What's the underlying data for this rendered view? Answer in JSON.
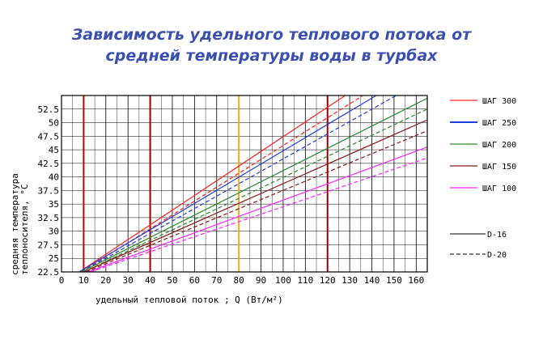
{
  "title_line1": "Зависимость удельного теплового потока от",
  "title_line2": "средней температуры воды в турбах",
  "chart_data": {
    "type": "line",
    "title": "Зависимость удельного теплового потока от средней температуры воды в турбах",
    "xlabel": "удельный тепловой поток ; Q (Вт/м²)",
    "ylabel_line1": "средняя температура",
    "ylabel_line2": "теплоносителя, °C",
    "xlim": [
      0,
      165
    ],
    "ylim": [
      22.5,
      55
    ],
    "x_ticks": [
      "0",
      "10",
      "20",
      "30",
      "40",
      "50",
      "60",
      "70",
      "80",
      "90",
      "100",
      "110",
      "120",
      "130",
      "140",
      "150",
      "160"
    ],
    "y_ticks": [
      "22.5",
      "25",
      "27.5",
      "30",
      "32.5",
      "35",
      "37.5",
      "40",
      "42.5",
      "45",
      "47.5",
      "50",
      "52.5"
    ],
    "highlight_vlines": [
      {
        "x": 10,
        "color": "#cc0000"
      },
      {
        "x": 40,
        "color": "#990000"
      },
      {
        "x": 80,
        "color": "#ffaa00"
      },
      {
        "x": 120,
        "color": "#990000"
      }
    ],
    "series": [
      {
        "name": "ШАГ 300",
        "color": "#ff2020",
        "style": "solid",
        "x": [
          8,
          128
        ],
        "y": [
          22.5,
          55
        ]
      },
      {
        "name": "ШАГ 300",
        "color": "#ff2020",
        "style": "dashed",
        "x": [
          9,
          136
        ],
        "y": [
          22.5,
          55
        ]
      },
      {
        "name": "ШАГ 250",
        "color": "#1f3fe0",
        "style": "solid",
        "x": [
          8,
          142
        ],
        "y": [
          22.5,
          55
        ]
      },
      {
        "name": "ШАГ 250",
        "color": "#1f3fe0",
        "style": "dashed",
        "x": [
          9,
          151
        ],
        "y": [
          22.5,
          55
        ]
      },
      {
        "name": "ШАГ 200",
        "color": "#2a8a2a",
        "style": "solid",
        "x": [
          9,
          165
        ],
        "y": [
          22.5,
          54.5
        ]
      },
      {
        "name": "ШАГ 200",
        "color": "#2a8a2a",
        "style": "dashed",
        "x": [
          10,
          165
        ],
        "y": [
          22.5,
          52.5
        ]
      },
      {
        "name": "ШАГ 150",
        "color": "#8b1a1a",
        "style": "solid",
        "x": [
          10,
          165
        ],
        "y": [
          22.5,
          50.5
        ]
      },
      {
        "name": "ШАГ 150",
        "color": "#8b1a1a",
        "style": "dashed",
        "x": [
          11,
          165
        ],
        "y": [
          22.5,
          48.5
        ]
      },
      {
        "name": "ШАГ 100",
        "color": "#ff22ff",
        "style": "solid",
        "x": [
          12,
          165
        ],
        "y": [
          22.5,
          45.5
        ]
      },
      {
        "name": "ШАГ 100",
        "color": "#ff22ff",
        "style": "dashed",
        "x": [
          13,
          165
        ],
        "y": [
          22.5,
          43.5
        ]
      }
    ],
    "legend": [
      {
        "label": "ШАГ 300",
        "color": "#ff2020"
      },
      {
        "label": "ШАГ 250",
        "color": "#1f3fe0"
      },
      {
        "label": "ШАГ 200",
        "color": "#2a8a2a"
      },
      {
        "label": "ШАГ 150",
        "color": "#8b1a1a"
      },
      {
        "label": "ШАГ 100",
        "color": "#ff22ff"
      }
    ],
    "style_legend": [
      {
        "label": "D-16",
        "style": "solid"
      },
      {
        "label": "D-20",
        "style": "dashed"
      }
    ],
    "legend_placement": "right",
    "grid": true
  }
}
